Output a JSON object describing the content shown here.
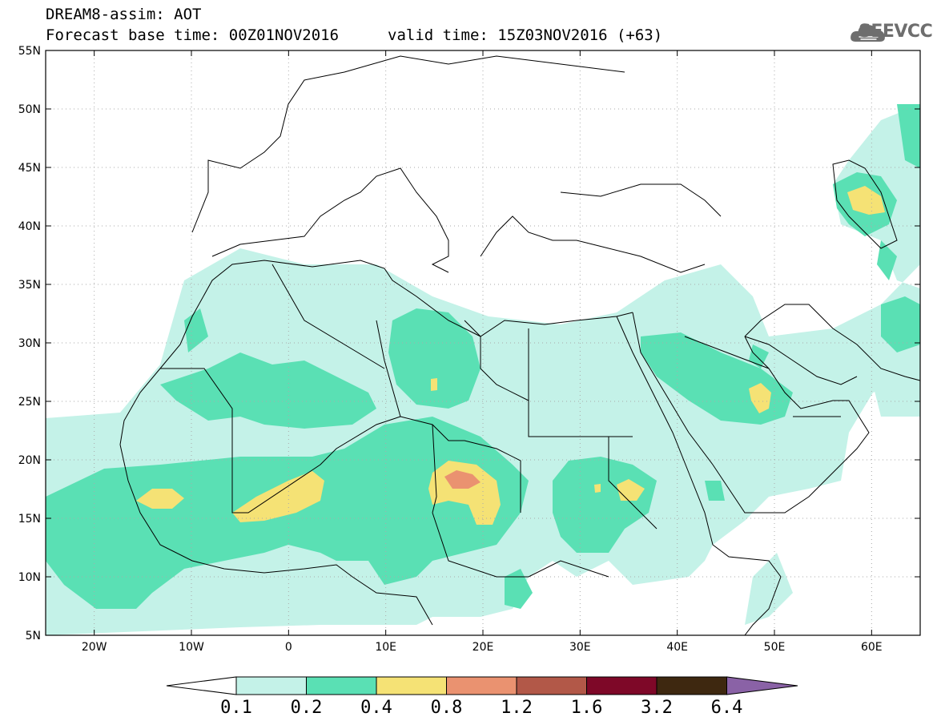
{
  "header": {
    "title": "DREAM8-assim: AOT",
    "base_time": "Forecast base time: 00Z01NOV2016",
    "valid_time": "valid time: 15Z03NOV2016 (+63)",
    "logo_text": "SEEVCCC"
  },
  "map": {
    "lon_range": [
      -25,
      65
    ],
    "lat_range": [
      5,
      55
    ],
    "lon_ticks": [
      "20W",
      "10W",
      "0",
      "10E",
      "20E",
      "30E",
      "40E",
      "50E",
      "60E"
    ],
    "lat_ticks": [
      "55N",
      "50N",
      "45N",
      "40N",
      "35N",
      "30N",
      "25N",
      "20N",
      "15N",
      "10N",
      "5N"
    ],
    "grid": true
  },
  "colorbar": {
    "labels": [
      "0.1",
      "0.2",
      "0.4",
      "0.8",
      "1.2",
      "1.6",
      "3.2",
      "6.4"
    ],
    "colors": [
      "#ffffff",
      "#c4f2e8",
      "#5ae0b4",
      "#f5e275",
      "#ea9270",
      "#b25848",
      "#7e0828",
      "#3e2810",
      "#8a62a6"
    ]
  }
}
